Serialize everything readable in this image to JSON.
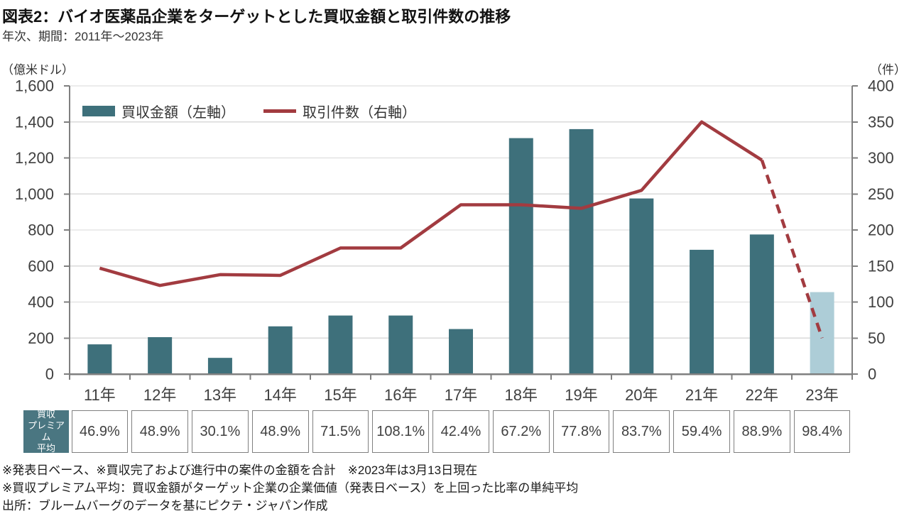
{
  "header": {
    "title": "図表2：バイオ医薬品企業をターゲットとした買収金額と取引件数の推移",
    "subtitle": "年次、期間：2011年～2023年"
  },
  "chart_data": {
    "type": "bar+line",
    "categories": [
      "11年",
      "12年",
      "13年",
      "14年",
      "15年",
      "16年",
      "17年",
      "18年",
      "19年",
      "20年",
      "21年",
      "22年",
      "23年"
    ],
    "series": [
      {
        "name": "買収金額（左軸）",
        "type": "bar",
        "axis": "left",
        "unit": "億米ドル",
        "values": [
          165,
          205,
          90,
          265,
          325,
          325,
          250,
          1310,
          1360,
          975,
          690,
          775,
          455
        ],
        "color": "#3E707B",
        "highlight_last_index": 12,
        "highlight_last_color": "#ADCDD7"
      },
      {
        "name": "取引件数（右軸）",
        "type": "line",
        "axis": "right",
        "unit": "件",
        "values": [
          147,
          123,
          138,
          137,
          175,
          175,
          235,
          235,
          230,
          255,
          350,
          297,
          50
        ],
        "color": "#A23B40",
        "dashed_segment_from_index": 11
      }
    ],
    "left_axis": {
      "label": "（億米ドル）",
      "min": 0,
      "max": 1600,
      "step": 200
    },
    "right_axis": {
      "label": "（件）",
      "min": 0,
      "max": 400,
      "step": 50
    },
    "grid": "horizontal",
    "legend": {
      "position": "top-left inside plot",
      "entries": [
        "買収金額（左軸）",
        "取引件数（右軸）"
      ]
    }
  },
  "premium_table": {
    "header_label": "買収プレミアム平均",
    "header_lines": [
      "買収",
      "プレミアム",
      "平均"
    ],
    "values": [
      "46.9%",
      "48.9%",
      "30.1%",
      "48.9%",
      "71.5%",
      "108.1%",
      "42.4%",
      "67.2%",
      "77.8%",
      "83.7%",
      "59.4%",
      "88.9%",
      "98.4%"
    ]
  },
  "footnotes": [
    "※発表日ベース、※買収完了および進行中の案件の金額を合計　※2023年は3月13日現在",
    "※買収プレミアム平均：買収金額がターゲット企業の企業価値（発表日ベース）を上回った比率の単純平均",
    "出所：ブルームバーグのデータを基にピクテ・ジャパン作成"
  ],
  "colors": {
    "bar": "#3E707B",
    "bar_2023": "#ADCDD7",
    "line": "#A23B40",
    "table_header_bg": "#4A7681",
    "axis": "#7F7F7F",
    "grid": "#D9D9D9",
    "tick_text": "#404040"
  }
}
